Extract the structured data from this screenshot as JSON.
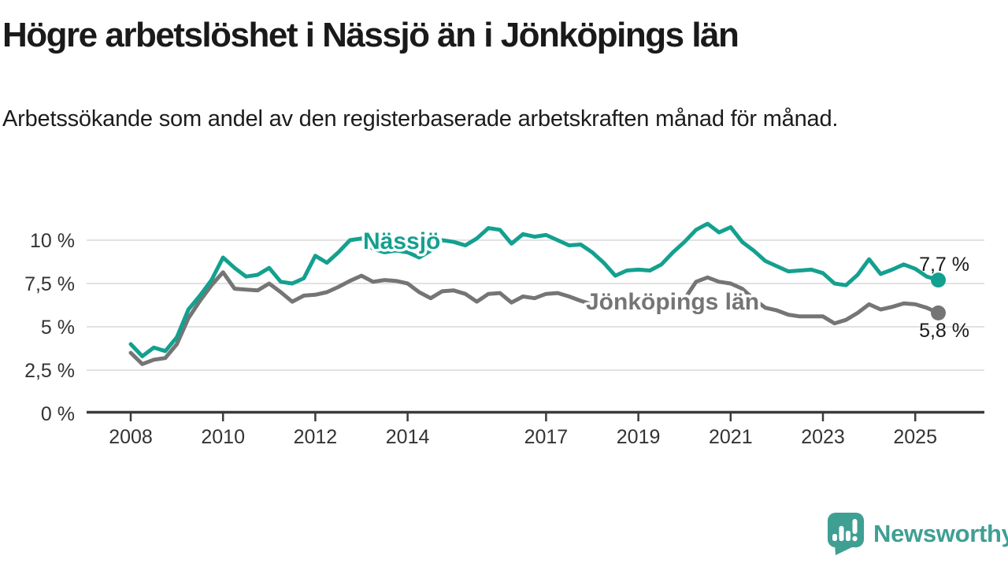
{
  "header": {
    "title": "Högre arbetslöshet i Nässjö än i Jönköpings län",
    "subtitle": "Arbetssökande som andel av den registerbaserade arbetskraften månad för månad."
  },
  "branding": {
    "name": "Newsworthy",
    "logo_color": "#3f9f93"
  },
  "colors": {
    "accent_teal": "#14a08f",
    "series_gray": "#757575",
    "grid": "#d9d9d9",
    "axis": "#3b3b3b"
  },
  "chart_data": {
    "type": "line",
    "x_unit": "decimal_year_monthly_series",
    "grid": "horizontal",
    "ylim": [
      0,
      11.5
    ],
    "xlim": [
      2007,
      2026.5
    ],
    "x": [
      2008.0,
      2008.25,
      2008.5,
      2008.75,
      2009.0,
      2009.25,
      2009.5,
      2009.75,
      2010.0,
      2010.25,
      2010.5,
      2010.75,
      2011.0,
      2011.25,
      2011.5,
      2011.75,
      2012.0,
      2012.25,
      2012.5,
      2012.75,
      2013.0,
      2013.25,
      2013.5,
      2013.75,
      2014.0,
      2014.25,
      2014.5,
      2014.75,
      2015.0,
      2015.25,
      2015.5,
      2015.75,
      2016.0,
      2016.25,
      2016.5,
      2016.75,
      2017.0,
      2017.25,
      2017.5,
      2017.75,
      2018.0,
      2018.25,
      2018.5,
      2018.75,
      2019.0,
      2019.25,
      2019.5,
      2019.75,
      2020.0,
      2020.25,
      2020.5,
      2020.75,
      2021.0,
      2021.25,
      2021.5,
      2021.75,
      2022.0,
      2022.25,
      2022.5,
      2022.75,
      2023.0,
      2023.25,
      2023.5,
      2023.75,
      2024.0,
      2024.25,
      2024.5,
      2024.75,
      2025.0,
      2025.25,
      2025.5
    ],
    "series": [
      {
        "name": "Nässjö",
        "color": "#14a08f",
        "end_label": "7,7 %",
        "end_value": 7.7,
        "values": [
          4.0,
          3.3,
          3.8,
          3.6,
          4.4,
          6.0,
          6.8,
          7.7,
          9.0,
          8.4,
          7.9,
          8.0,
          8.4,
          7.6,
          7.5,
          7.8,
          9.1,
          8.7,
          9.3,
          10.0,
          10.1,
          9.5,
          9.3,
          9.4,
          9.3,
          9.0,
          9.4,
          10.0,
          9.9,
          9.7,
          10.1,
          10.7,
          10.6,
          9.8,
          10.35,
          10.2,
          10.3,
          10.0,
          9.7,
          9.75,
          9.3,
          8.7,
          7.95,
          8.25,
          8.3,
          8.25,
          8.6,
          9.3,
          9.9,
          10.6,
          10.95,
          10.45,
          10.75,
          9.9,
          9.4,
          8.8,
          8.5,
          8.2,
          8.25,
          8.3,
          8.1,
          7.5,
          7.4,
          8.0,
          8.9,
          8.05,
          8.3,
          8.6,
          8.35,
          7.9,
          7.7
        ]
      },
      {
        "name": "Jönköpings län",
        "color": "#757575",
        "end_label": "5,8 %",
        "end_value": 5.8,
        "values": [
          3.5,
          2.85,
          3.1,
          3.2,
          4.0,
          5.5,
          6.5,
          7.4,
          8.15,
          7.2,
          7.15,
          7.1,
          7.5,
          7.0,
          6.45,
          6.8,
          6.85,
          7.0,
          7.3,
          7.65,
          7.95,
          7.6,
          7.7,
          7.65,
          7.5,
          7.0,
          6.65,
          7.05,
          7.1,
          6.9,
          6.45,
          6.9,
          6.95,
          6.4,
          6.75,
          6.65,
          6.9,
          6.95,
          6.75,
          6.5,
          6.3,
          6.2,
          6.15,
          6.2,
          6.1,
          6.0,
          6.1,
          6.3,
          6.6,
          7.6,
          7.85,
          7.6,
          7.5,
          7.2,
          6.6,
          6.1,
          5.95,
          5.7,
          5.6,
          5.6,
          5.6,
          5.2,
          5.4,
          5.8,
          6.3,
          6.0,
          6.15,
          6.35,
          6.3,
          6.1,
          5.8
        ]
      }
    ],
    "yticks": [
      {
        "value": 0,
        "label": "0 %"
      },
      {
        "value": 2.5,
        "label": "2,5 %"
      },
      {
        "value": 5,
        "label": "5 %"
      },
      {
        "value": 7.5,
        "label": "7,5 %"
      },
      {
        "value": 10,
        "label": "10 %"
      }
    ],
    "xticks": [
      {
        "value": 2008,
        "label": "2008"
      },
      {
        "value": 2010,
        "label": "2010"
      },
      {
        "value": 2012,
        "label": "2012"
      },
      {
        "value": 2014,
        "label": "2014"
      },
      {
        "value": 2017,
        "label": "2017"
      },
      {
        "value": 2019,
        "label": "2019"
      },
      {
        "value": 2021,
        "label": "2021"
      },
      {
        "value": 2023,
        "label": "2023"
      },
      {
        "value": 2025,
        "label": "2025"
      }
    ]
  }
}
